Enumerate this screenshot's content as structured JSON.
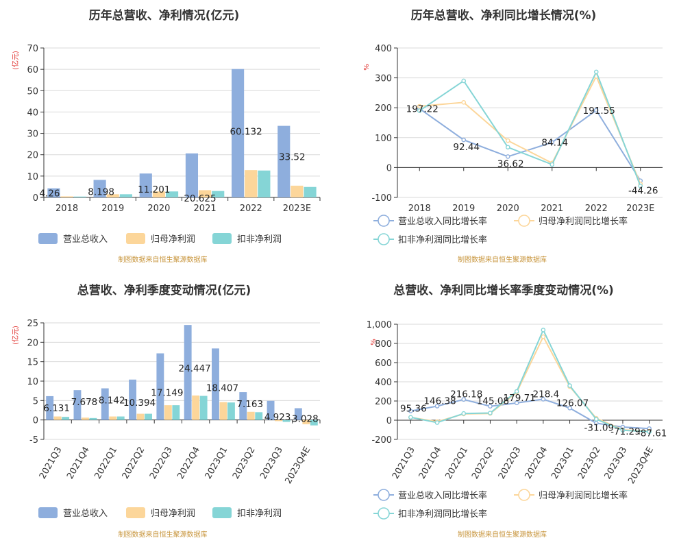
{
  "source_note": "制图数据来自恒生聚源数据库",
  "chart_data": [
    {
      "type": "bar",
      "title": "历年总营收、净利情况(亿元)",
      "unit_label": "(亿元)",
      "categories": [
        "2018",
        "2019",
        "2020",
        "2021",
        "2022",
        "2023E"
      ],
      "ylim": [
        0,
        70
      ],
      "yticks": [
        0,
        10,
        20,
        30,
        40,
        50,
        60,
        70
      ],
      "series": [
        {
          "name": "营业总收入",
          "color": "#8eaedd",
          "values": [
            4.26,
            8.198,
            11.201,
            20.625,
            60.132,
            33.52
          ]
        },
        {
          "name": "归母净利润",
          "color": "#fcd69a",
          "values": [
            0.5,
            1.5,
            2.8,
            3.4,
            12.8,
            5.5
          ]
        },
        {
          "name": "扣非净利润",
          "color": "#85d5d6",
          "values": [
            0.4,
            1.5,
            2.8,
            3.0,
            12.6,
            4.9
          ]
        }
      ],
      "data_labels": [
        "4.26",
        "8.198",
        "11.201",
        "20.625",
        "60.132",
        "33.52"
      ],
      "legend_position": "bottom",
      "grid": true
    },
    {
      "type": "line",
      "title": "历年总营收、净利同比增长情况(%)",
      "unit_label": "%",
      "categories": [
        "2018",
        "2019",
        "2020",
        "2021",
        "2022",
        "2023E"
      ],
      "ylim": [
        -100,
        400
      ],
      "yticks": [
        -100,
        0,
        100,
        200,
        300,
        400
      ],
      "series": [
        {
          "name": "营业总收入同比增长率",
          "color": "#8eaedd",
          "values": [
            197.22,
            92.44,
            36.62,
            84.14,
            191.55,
            -44.26
          ]
        },
        {
          "name": "归母净利润同比增长率",
          "color": "#fcd69a",
          "values": [
            205,
            218,
            90,
            15,
            305,
            -55
          ]
        },
        {
          "name": "扣非净利润同比增长率",
          "color": "#85d5d6",
          "values": [
            190,
            290,
            68,
            10,
            320,
            -62
          ]
        }
      ],
      "data_labels": [
        "197.22",
        "92.44",
        "36.62",
        "84.14",
        "191.55",
        "-44.26"
      ],
      "legend_position": "bottom",
      "grid": true
    },
    {
      "type": "bar",
      "title": "总营收、净利季度变动情况(亿元)",
      "unit_label": "(亿元)",
      "categories": [
        "2021Q3",
        "2021Q4",
        "2022Q1",
        "2022Q2",
        "2022Q3",
        "2022Q4",
        "2023Q1",
        "2023Q2",
        "2023Q3",
        "2023Q4E"
      ],
      "ylim": [
        -5,
        25
      ],
      "yticks": [
        -5,
        0,
        5,
        10,
        15,
        20,
        25
      ],
      "series": [
        {
          "name": "营业总收入",
          "color": "#8eaedd",
          "values": [
            6.131,
            7.678,
            8.142,
            10.394,
            17.149,
            24.447,
            18.407,
            7.163,
            4.923,
            3.028
          ]
        },
        {
          "name": "归母净利润",
          "color": "#fcd69a",
          "values": [
            0.9,
            0.6,
            0.9,
            1.6,
            3.8,
            6.3,
            4.6,
            2.1,
            -0.3,
            -1.1
          ]
        },
        {
          "name": "扣非净利润",
          "color": "#85d5d6",
          "values": [
            0.8,
            0.5,
            0.9,
            1.6,
            3.8,
            6.2,
            4.5,
            2.0,
            -0.5,
            -1.4
          ]
        }
      ],
      "data_labels": [
        "6.131",
        "7.678",
        "8.142",
        "10.394",
        "17.149",
        "24.447",
        "18.407",
        "7.163",
        "4.923",
        "3.028"
      ],
      "legend_position": "bottom",
      "grid": true
    },
    {
      "type": "line",
      "title": "总营收、净利同比增长率季度变动情况(%)",
      "unit_label": "%",
      "categories": [
        "2021Q3",
        "2021Q4",
        "2022Q1",
        "2022Q2",
        "2022Q3",
        "2022Q4",
        "2023Q1",
        "2023Q2",
        "2023Q3",
        "2023Q4E"
      ],
      "ylim": [
        -200,
        1000
      ],
      "yticks": [
        -200,
        0,
        200,
        400,
        600,
        800,
        1000
      ],
      "series": [
        {
          "name": "营业总收入同比增长率",
          "color": "#8eaedd",
          "values": [
            95.36,
            146.38,
            216.18,
            145.08,
            179.71,
            218.4,
            126.07,
            -31.09,
            -71.29,
            -87.61
          ]
        },
        {
          "name": "归母净利润同比增长率",
          "color": "#fcd69a",
          "values": [
            30,
            -15,
            65,
            70,
            290,
            870,
            350,
            20,
            -100,
            -115
          ]
        },
        {
          "name": "扣非净利润同比增长率",
          "color": "#85d5d6",
          "values": [
            30,
            -25,
            70,
            75,
            300,
            940,
            360,
            10,
            -105,
            -120
          ]
        }
      ],
      "data_labels": [
        "95.36",
        "146.38",
        "216.18",
        "145.08",
        "179.71",
        "218.4",
        "126.07",
        "-31.09",
        "-71.29",
        "-87.61"
      ],
      "legend_position": "bottom",
      "grid": true
    }
  ]
}
